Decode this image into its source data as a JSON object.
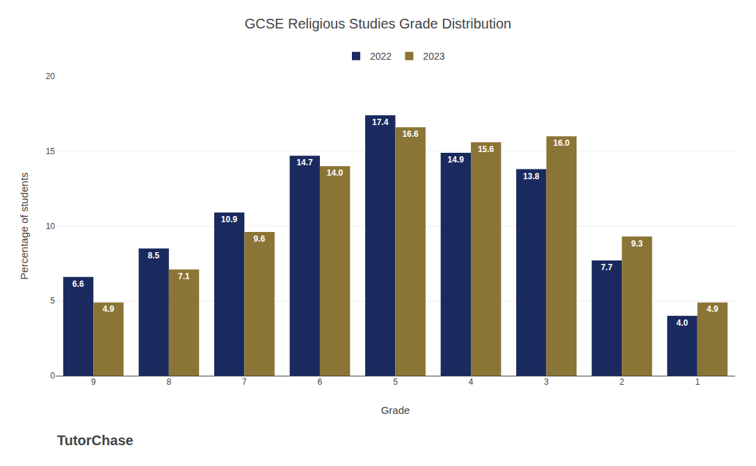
{
  "chart_data": {
    "type": "bar",
    "title": "GCSE Religious Studies Grade Distribution",
    "xlabel": "Grade",
    "ylabel": "Percentage of students",
    "categories": [
      "9",
      "8",
      "7",
      "6",
      "5",
      "4",
      "3",
      "2",
      "1"
    ],
    "series": [
      {
        "name": "2022",
        "color": "#1a2a5e",
        "values": [
          6.6,
          8.5,
          10.9,
          14.7,
          17.4,
          14.9,
          13.8,
          7.7,
          4.0
        ],
        "value_labels": [
          "6.6",
          "8.5",
          "10.9",
          "14.7",
          "17.4",
          "14.9",
          "13.8",
          "7.7",
          "4.0"
        ]
      },
      {
        "name": "2023",
        "color": "#8B7536",
        "values": [
          4.9,
          7.1,
          9.6,
          14.0,
          16.6,
          15.6,
          16.0,
          9.3,
          4.9
        ],
        "value_labels": [
          "4.9",
          "7.1",
          "9.6",
          "14.0",
          "16.6",
          "15.6",
          "16.0",
          "9.3",
          "4.9"
        ]
      }
    ],
    "ylim": [
      0,
      20
    ],
    "yticks": [
      0,
      5,
      10,
      15,
      20
    ],
    "grid": true,
    "legend": "top",
    "data_labels": true,
    "annotations": [
      "TutorChase"
    ]
  }
}
